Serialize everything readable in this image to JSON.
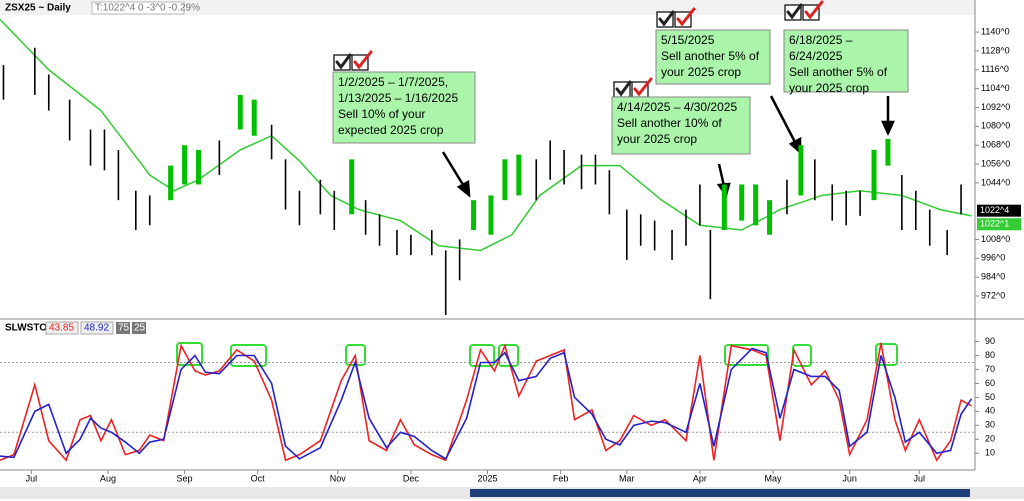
{
  "chart_data": [
    {
      "type": "range-bar",
      "title": "ZSX25 ~ Daily",
      "subtitle": "T:1022^4 0 -3^0 -0.29%",
      "xlim": [
        0,
        280
      ],
      "ylim": [
        958,
        1151.5
      ],
      "yticks": [
        {
          "value": 972,
          "label": "972^0"
        },
        {
          "value": 984,
          "label": "984^0"
        },
        {
          "value": 996,
          "label": "996^0"
        },
        {
          "value": 1008,
          "label": "1008^0"
        },
        {
          "value": 1044,
          "label": "1044^0"
        },
        {
          "value": 1056,
          "label": "1056^0"
        },
        {
          "value": 1068,
          "label": "1068^0"
        },
        {
          "value": 1080,
          "label": "1080^0"
        },
        {
          "value": 1092,
          "label": "1092^0"
        },
        {
          "value": 1104,
          "label": "1104^0"
        },
        {
          "value": 1116,
          "label": "1116^0"
        },
        {
          "value": 1128,
          "label": "1128^0"
        },
        {
          "value": 1140,
          "label": "1140^0"
        }
      ],
      "bars": {
        "x": [
          1,
          10,
          14,
          20,
          26,
          30,
          34,
          39,
          43,
          49,
          53,
          57,
          63,
          69,
          73,
          78,
          82,
          86,
          92,
          96,
          101,
          105,
          109,
          114,
          118,
          124,
          128,
          132,
          136,
          141,
          145,
          149,
          154,
          158,
          162,
          167,
          171,
          175,
          180,
          184,
          188,
          193,
          197,
          201,
          204,
          208,
          213,
          217,
          221,
          226,
          230,
          234,
          239,
          243,
          247,
          251,
          255,
          259,
          263,
          267,
          272,
          276
        ],
        "high": [
          1119,
          1130,
          1113,
          1097,
          1078,
          1078,
          1065,
          1039,
          1036,
          1055,
          1068,
          1065,
          1071,
          1100,
          1097,
          1081,
          1059,
          1039,
          1046,
          1039,
          1059,
          1033,
          1024,
          1014,
          1011,
          1014,
          1001,
          1008,
          1033,
          1036,
          1059,
          1062,
          1059,
          1071,
          1065,
          1062,
          1062,
          1052,
          1027,
          1024,
          1020,
          1014,
          1027,
          1043,
          1014,
          1043,
          1043,
          1043,
          1033,
          1046,
          1068,
          1059,
          1043,
          1039,
          1039,
          1065,
          1072,
          1049,
          1039,
          1027,
          1014,
          1043
        ],
        "low": [
          1097,
          1100,
          1090,
          1071,
          1055,
          1052,
          1033,
          1014,
          1017,
          1033,
          1043,
          1043,
          1049,
          1078,
          1074,
          1059,
          1027,
          1017,
          1024,
          1014,
          1024,
          1011,
          1004,
          998,
          998,
          998,
          960,
          982,
          1014,
          1011,
          1033,
          1036,
          1033,
          1046,
          1043,
          1040,
          1043,
          1024,
          995,
          1004,
          1001,
          995,
          1004,
          1017,
          970,
          1014,
          1020,
          1017,
          1011,
          1024,
          1036,
          1033,
          1020,
          1017,
          1023,
          1033,
          1055,
          1014,
          1014,
          1004,
          998,
          1024
        ],
        "colors": [
          "#000000",
          "#000000",
          "#000000",
          "#000000",
          "#000000",
          "#000000",
          "#000000",
          "#000000",
          "#000000",
          "#00c000",
          "#00c000",
          "#00c000",
          "#000000",
          "#00c000",
          "#00c000",
          "#000000",
          "#000000",
          "#000000",
          "#000000",
          "#000000",
          "#00c000",
          "#000000",
          "#000000",
          "#000000",
          "#000000",
          "#000000",
          "#000000",
          "#000000",
          "#00c000",
          "#00c000",
          "#00c000",
          "#00c000",
          "#000000",
          "#000000",
          "#000000",
          "#000000",
          "#000000",
          "#000000",
          "#000000",
          "#000000",
          "#000000",
          "#000000",
          "#000000",
          "#000000",
          "#000000",
          "#00c000",
          "#00c000",
          "#00c000",
          "#00c000",
          "#000000",
          "#00c000",
          "#000000",
          "#000000",
          "#000000",
          "#000000",
          "#00c000",
          "#00c000",
          "#000000",
          "#000000",
          "#000000",
          "#000000",
          "#000000"
        ]
      },
      "ma": {
        "color": "#33cc33",
        "x": [
          0,
          14,
          29,
          43,
          50,
          57,
          69,
          78,
          86,
          95,
          103,
          115,
          126,
          138,
          147,
          155,
          167,
          178,
          190,
          201,
          213,
          224,
          236,
          247,
          259,
          270,
          279
        ],
        "values": [
          1148,
          1116,
          1090,
          1049,
          1039,
          1046,
          1065,
          1074,
          1058,
          1036,
          1027,
          1020,
          1004,
          1001,
          1011,
          1036,
          1055,
          1055,
          1033,
          1017,
          1014,
          1027,
          1036,
          1039,
          1036,
          1027,
          1023
        ]
      },
      "last_labels": [
        {
          "value": 1022.5,
          "label": "1022^4",
          "color": "#000000"
        },
        {
          "value": 1022.125,
          "label": "1022^1",
          "color": "#33cc33"
        }
      ],
      "annotations": [
        {
          "lines": [
            "1/2/2025 –  1/7/2025,",
            "1/13/2025 – 1/16/2025",
            "Sell 10% of your",
            "expected 2025 crop"
          ]
        },
        {
          "lines": [
            "4/14/2025 – 4/30/2025",
            "Sell another 10% of",
            "your 2025 crop"
          ]
        },
        {
          "lines": [
            "5/15/2025",
            "Sell another 5% of",
            "your 2025 crop"
          ]
        },
        {
          "lines": [
            "6/18/2025 –",
            "6/24/2025",
            "Sell another 5% of",
            "your 2025 crop"
          ]
        }
      ]
    },
    {
      "type": "line",
      "title": "SLWSTO",
      "xlim": [
        0,
        280
      ],
      "ylim": [
        -2,
        104
      ],
      "yticks": [
        10,
        20,
        30,
        40,
        50,
        60,
        70,
        80,
        90
      ],
      "levels": [
        75,
        25
      ],
      "xticks": [
        {
          "value": 9,
          "label": "Jul"
        },
        {
          "value": 31,
          "label": "Aug"
        },
        {
          "value": 53,
          "label": "Sep"
        },
        {
          "value": 74,
          "label": "Oct"
        },
        {
          "value": 97,
          "label": "Nov"
        },
        {
          "value": 118,
          "label": "Dec"
        },
        {
          "value": 140,
          "label": "2025"
        },
        {
          "value": 161,
          "label": "Feb"
        },
        {
          "value": 180,
          "label": "Mar"
        },
        {
          "value": 201,
          "label": "Apr"
        },
        {
          "value": 222,
          "label": "May"
        },
        {
          "value": 244,
          "label": "Jun"
        },
        {
          "value": 264,
          "label": "Jul"
        }
      ],
      "x": [
        0,
        4,
        10,
        14,
        19,
        23,
        26,
        29,
        32,
        36,
        40,
        43,
        47,
        52,
        56,
        59,
        63,
        68,
        73,
        78,
        82,
        86,
        92,
        98,
        102,
        106,
        111,
        115,
        119,
        124,
        128,
        134,
        138,
        142,
        145,
        149,
        154,
        158,
        162,
        165,
        170,
        174,
        178,
        182,
        187,
        191,
        197,
        201,
        205,
        210,
        216,
        220,
        224,
        228,
        233,
        237,
        241,
        244,
        249,
        253,
        257,
        260,
        264,
        269,
        273,
        276,
        279
      ],
      "series": [
        {
          "name": "43.85",
          "color": "#ee2222",
          "values": [
            5,
            9,
            59,
            19,
            5,
            34,
            37,
            19,
            34,
            9,
            12,
            23,
            19,
            87,
            69,
            66,
            69,
            84,
            76,
            48,
            5,
            9,
            19,
            62,
            80,
            19,
            12,
            34,
            16,
            9,
            5,
            48,
            84,
            69,
            87,
            51,
            76,
            80,
            84,
            34,
            41,
            12,
            19,
            37,
            30,
            34,
            19,
            80,
            5,
            87,
            84,
            80,
            19,
            84,
            59,
            69,
            48,
            9,
            34,
            89,
            34,
            12,
            34,
            5,
            19,
            48,
            44
          ]
        },
        {
          "name": "48.92",
          "color": "#2222cc",
          "values": [
            8,
            7,
            40,
            45,
            10,
            20,
            35,
            28,
            25,
            18,
            10,
            18,
            20,
            70,
            80,
            68,
            67,
            80,
            80,
            60,
            15,
            6,
            14,
            48,
            75,
            35,
            14,
            25,
            22,
            12,
            6,
            35,
            75,
            75,
            82,
            62,
            65,
            78,
            82,
            50,
            38,
            20,
            16,
            30,
            33,
            32,
            25,
            60,
            15,
            70,
            85,
            82,
            35,
            70,
            65,
            65,
            55,
            15,
            25,
            80,
            50,
            18,
            25,
            10,
            12,
            38,
            49
          ]
        }
      ]
    }
  ]
}
